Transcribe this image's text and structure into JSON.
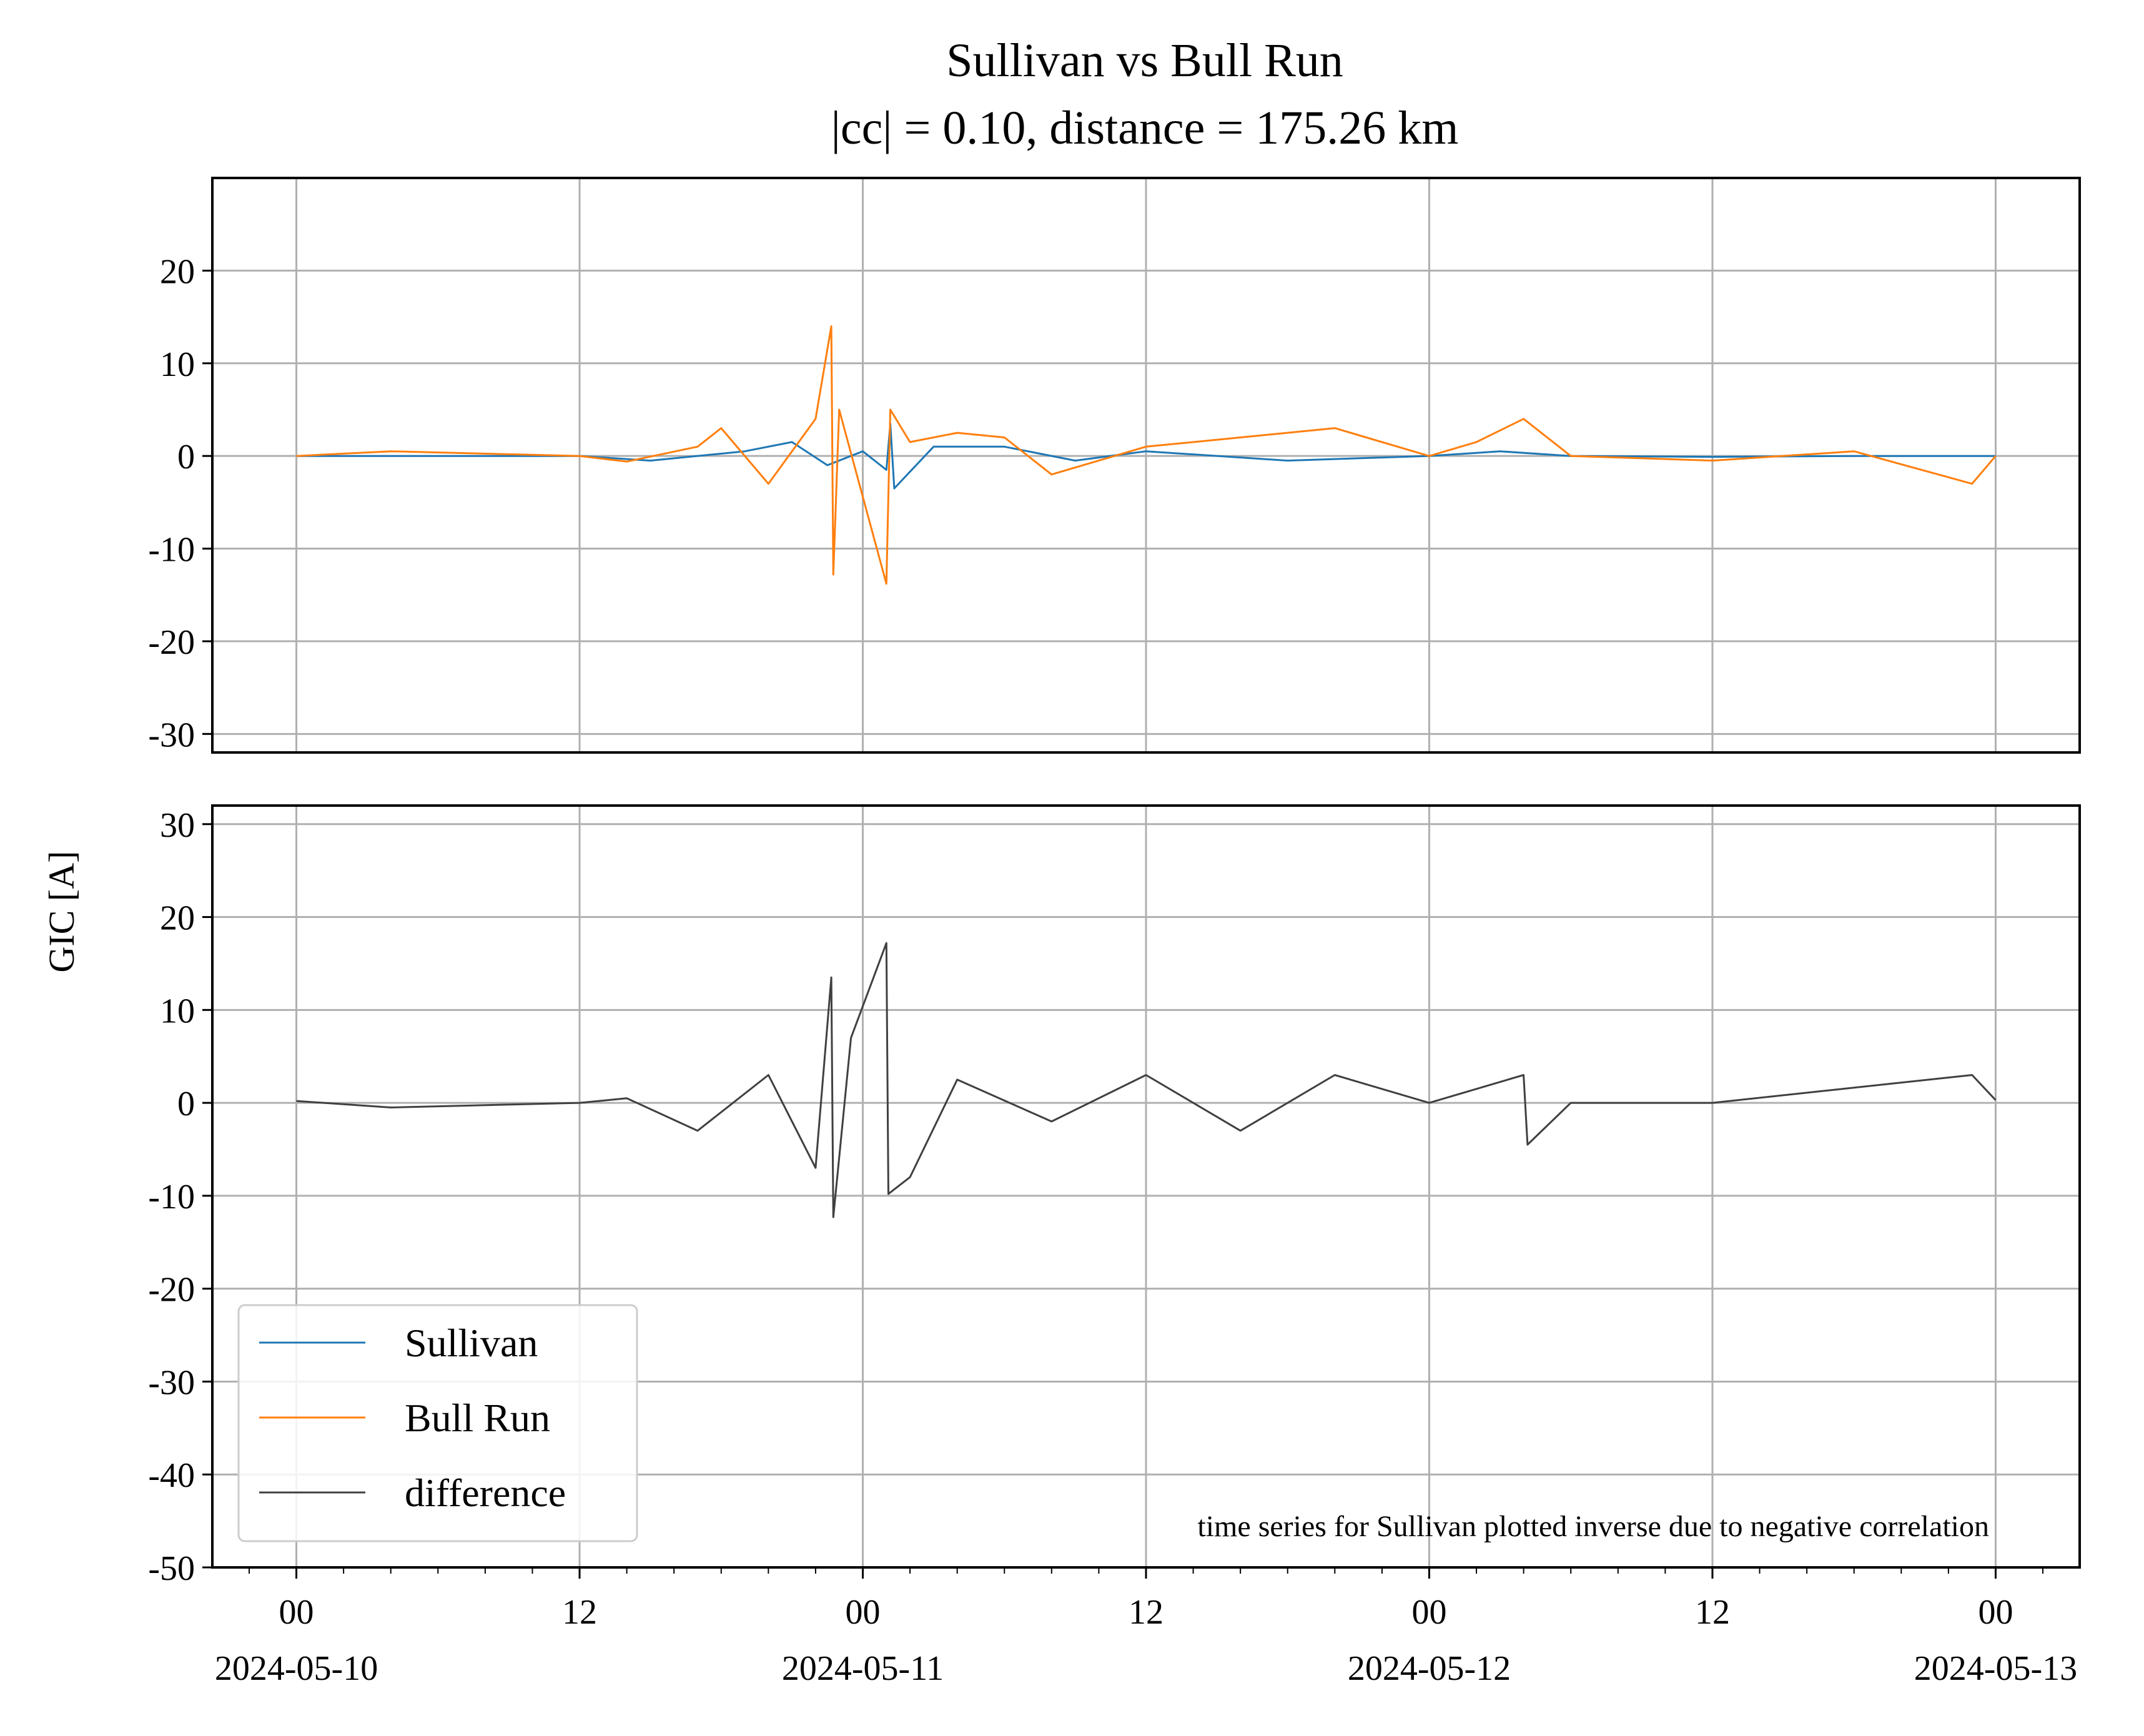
{
  "chart_data": {
    "type": "line",
    "title": "Sullivan vs Bull Run",
    "subtitle": "|cc| = 0.10, distance = 175.26 km",
    "ylabel": "GIC [A]",
    "xlabel": "",
    "x_range": [
      "2024-05-10 00:00",
      "2024-05-13 00:00"
    ],
    "x_ticks": [
      {
        "hour": "00",
        "date": "2024-05-10"
      },
      {
        "hour": "12",
        "date": ""
      },
      {
        "hour": "00",
        "date": "2024-05-11"
      },
      {
        "hour": "12",
        "date": ""
      },
      {
        "hour": "00",
        "date": "2024-05-12"
      },
      {
        "hour": "12",
        "date": ""
      },
      {
        "hour": "00",
        "date": "2024-05-13"
      }
    ],
    "grid": true,
    "legend_position": "lower-left",
    "annotation": "time series for Sullivan plotted inverse due to negative correlation",
    "panels": [
      {
        "name": "top",
        "ylim": [
          -32,
          30
        ],
        "yticks": [
          20,
          10,
          0,
          -10,
          -20,
          -30
        ],
        "series": [
          {
            "name": "Sullivan",
            "color": "#1f77b4",
            "points": [
              [
                "2024-05-10 00:00",
                0.0
              ],
              [
                "2024-05-10 06:00",
                0.0
              ],
              [
                "2024-05-10 12:00",
                0.0
              ],
              [
                "2024-05-10 15:00",
                -0.5
              ],
              [
                "2024-05-10 19:00",
                0.5
              ],
              [
                "2024-05-10 21:00",
                1.5
              ],
              [
                "2024-05-10 22:30",
                -1.0
              ],
              [
                "2024-05-11 00:00",
                0.5
              ],
              [
                "2024-05-11 01:00",
                -1.5
              ],
              [
                "2024-05-11 01:10",
                3.5
              ],
              [
                "2024-05-11 01:20",
                -3.5
              ],
              [
                "2024-05-11 03:00",
                1.0
              ],
              [
                "2024-05-11 06:00",
                1.0
              ],
              [
                "2024-05-11 09:00",
                -0.5
              ],
              [
                "2024-05-11 12:00",
                0.5
              ],
              [
                "2024-05-11 18:00",
                -0.5
              ],
              [
                "2024-05-12 00:00",
                0.0
              ],
              [
                "2024-05-12 03:00",
                0.5
              ],
              [
                "2024-05-12 06:00",
                0.0
              ],
              [
                "2024-05-12 12:00",
                -0.1
              ],
              [
                "2024-05-12 18:00",
                0.0
              ],
              [
                "2024-05-13 00:00",
                0.0
              ]
            ]
          },
          {
            "name": "Bull Run",
            "color": "#ff7f0e",
            "points": [
              [
                "2024-05-10 00:00",
                0.0
              ],
              [
                "2024-05-10 04:00",
                0.5
              ],
              [
                "2024-05-10 12:00",
                0.0
              ],
              [
                "2024-05-10 14:00",
                -0.6
              ],
              [
                "2024-05-10 17:00",
                1.0
              ],
              [
                "2024-05-10 18:00",
                3.0
              ],
              [
                "2024-05-10 20:00",
                -3.0
              ],
              [
                "2024-05-10 22:00",
                4.0
              ],
              [
                "2024-05-10 22:40",
                14.0
              ],
              [
                "2024-05-10 22:45",
                -12.8
              ],
              [
                "2024-05-10 23:00",
                5.0
              ],
              [
                "2024-05-11 01:00",
                -13.8
              ],
              [
                "2024-05-11 01:10",
                5.0
              ],
              [
                "2024-05-11 02:00",
                1.5
              ],
              [
                "2024-05-11 04:00",
                2.5
              ],
              [
                "2024-05-11 06:00",
                2.0
              ],
              [
                "2024-05-11 08:00",
                -2.0
              ],
              [
                "2024-05-11 12:00",
                1.0
              ],
              [
                "2024-05-11 16:00",
                2.0
              ],
              [
                "2024-05-11 20:00",
                3.0
              ],
              [
                "2024-05-12 00:00",
                0.0
              ],
              [
                "2024-05-12 02:00",
                1.5
              ],
              [
                "2024-05-12 04:00",
                4.0
              ],
              [
                "2024-05-12 06:00",
                0.0
              ],
              [
                "2024-05-12 12:00",
                -0.5
              ],
              [
                "2024-05-12 18:00",
                0.5
              ],
              [
                "2024-05-12 23:00",
                -3.0
              ],
              [
                "2024-05-13 00:00",
                0.0
              ]
            ]
          }
        ]
      },
      {
        "name": "bottom",
        "ylim": [
          -50,
          32
        ],
        "yticks": [
          30,
          20,
          10,
          0,
          -10,
          -20,
          -30,
          -40,
          -50
        ],
        "series": [
          {
            "name": "difference",
            "color": "#404040",
            "points": [
              [
                "2024-05-10 00:00",
                0.2
              ],
              [
                "2024-05-10 04:00",
                -0.5
              ],
              [
                "2024-05-10 12:00",
                0.0
              ],
              [
                "2024-05-10 14:00",
                0.5
              ],
              [
                "2024-05-10 17:00",
                -3.0
              ],
              [
                "2024-05-10 20:00",
                3.0
              ],
              [
                "2024-05-10 22:00",
                -7.0
              ],
              [
                "2024-05-10 22:40",
                13.5
              ],
              [
                "2024-05-10 22:45",
                -12.3
              ],
              [
                "2024-05-10 23:30",
                7.0
              ],
              [
                "2024-05-11 01:00",
                17.2
              ],
              [
                "2024-05-11 01:05",
                -9.8
              ],
              [
                "2024-05-11 02:00",
                -8.0
              ],
              [
                "2024-05-11 04:00",
                2.5
              ],
              [
                "2024-05-11 08:00",
                -2.0
              ],
              [
                "2024-05-11 12:00",
                3.0
              ],
              [
                "2024-05-11 16:00",
                -3.0
              ],
              [
                "2024-05-11 20:00",
                3.0
              ],
              [
                "2024-05-12 00:00",
                0.0
              ],
              [
                "2024-05-12 04:00",
                3.0
              ],
              [
                "2024-05-12 04:10",
                -4.5
              ],
              [
                "2024-05-12 06:00",
                0.0
              ],
              [
                "2024-05-12 12:00",
                0.0
              ],
              [
                "2024-05-12 23:00",
                3.0
              ],
              [
                "2024-05-13 00:00",
                0.3
              ]
            ]
          }
        ]
      }
    ]
  },
  "colors": {
    "sullivan": "#1f77b4",
    "bull_run": "#ff7f0e",
    "difference": "#404040",
    "grid": "#b0b0b0"
  }
}
